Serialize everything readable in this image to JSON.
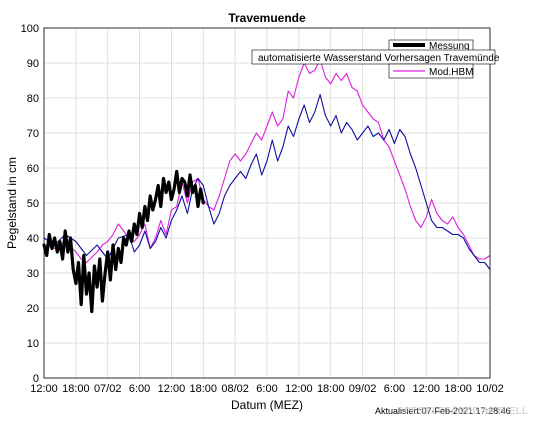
{
  "chart_data": {
    "type": "line",
    "title": "Travemuende",
    "xlabel": "Datum (MEZ)",
    "ylabel": "Pegelstand in cm",
    "xlim": [
      0,
      84
    ],
    "ylim": [
      0,
      100
    ],
    "yticks": [
      0,
      10,
      20,
      30,
      40,
      50,
      60,
      70,
      80,
      90,
      100
    ],
    "xticks": [
      {
        "x": 0,
        "label": "12:00"
      },
      {
        "x": 6,
        "label": "18:00"
      },
      {
        "x": 12,
        "label": "07/02"
      },
      {
        "x": 18,
        "label": "6:00"
      },
      {
        "x": 24,
        "label": "12:00"
      },
      {
        "x": 30,
        "label": "18:00"
      },
      {
        "x": 36,
        "label": "08/02"
      },
      {
        "x": 42,
        "label": "6:00"
      },
      {
        "x": 48,
        "label": "12:00"
      },
      {
        "x": 54,
        "label": "18:00"
      },
      {
        "x": 60,
        "label": "09/02"
      },
      {
        "x": 66,
        "label": "6:00"
      },
      {
        "x": 72,
        "label": "12:00"
      },
      {
        "x": 78,
        "label": "18:00"
      },
      {
        "x": 84,
        "label": "10/02"
      }
    ],
    "grid": true,
    "legend_position": "top-right",
    "series": [
      {
        "name": "Messung",
        "color": "#000000",
        "x": [
          0,
          0.5,
          1,
          1.5,
          2,
          2.5,
          3,
          3.5,
          4,
          4.5,
          5,
          5.5,
          6,
          6.5,
          7,
          7.5,
          8,
          8.5,
          9,
          9.5,
          10,
          10.5,
          11,
          11.5,
          12,
          12.5,
          13,
          13.5,
          14,
          14.5,
          15,
          15.5,
          16,
          16.5,
          17,
          17.5,
          18,
          18.5,
          19,
          19.5,
          20,
          20.5,
          21,
          21.5,
          22,
          22.5,
          23,
          23.5,
          24,
          24.5,
          25,
          25.5,
          26,
          26.5,
          27,
          27.5,
          28,
          28.5,
          29,
          29.5,
          30
        ],
        "y": [
          38,
          35,
          41,
          37,
          40,
          36,
          39,
          34,
          42,
          36,
          40,
          31,
          27,
          33,
          21,
          35,
          24,
          30,
          19,
          32,
          26,
          34,
          22,
          30,
          36,
          28,
          38,
          31,
          37,
          33,
          40,
          38,
          42,
          39,
          44,
          41,
          47,
          43,
          49,
          45,
          52,
          48,
          51,
          55,
          49,
          57,
          53,
          56,
          51,
          54,
          59,
          53,
          57,
          56,
          52,
          58,
          53,
          55,
          49,
          54,
          50
        ]
      },
      {
        "name": "automatisierte Wasserstand Vorhersagen Travemünde",
        "color": "#1010a0",
        "x": [
          0,
          2,
          4,
          6,
          7,
          8,
          10,
          11,
          12,
          13,
          14,
          16,
          17,
          18,
          19,
          20,
          21,
          22,
          23,
          24,
          25,
          26,
          27,
          28,
          29,
          30,
          31,
          32,
          33,
          34,
          35,
          36,
          37,
          38,
          39,
          40,
          41,
          42,
          43,
          44,
          45,
          46,
          47,
          48,
          49,
          50,
          51,
          52,
          53,
          54,
          55,
          56,
          57,
          58,
          59,
          60,
          61,
          62,
          63,
          64,
          65,
          66,
          67,
          68,
          69,
          70,
          71,
          72,
          73,
          74,
          75,
          76,
          77,
          78,
          79,
          80,
          81,
          82,
          83,
          84
        ],
        "y": [
          40,
          38,
          41,
          39,
          37,
          35,
          38,
          36,
          34,
          37,
          40,
          41,
          36,
          38,
          42,
          37,
          39,
          43,
          40,
          45,
          48,
          52,
          47,
          54,
          57,
          55,
          49,
          44,
          47,
          52,
          55,
          57,
          59,
          57,
          61,
          64,
          58,
          62,
          68,
          62,
          66,
          72,
          69,
          74,
          78,
          73,
          76,
          81,
          75,
          72,
          75,
          70,
          73,
          71,
          68,
          70,
          72,
          69,
          70,
          68,
          71,
          67,
          71,
          69,
          64,
          60,
          55,
          50,
          45,
          43,
          43,
          42,
          41,
          41,
          40,
          37,
          35,
          33,
          33,
          31
        ]
      },
      {
        "name": "Mod.HBM",
        "color": "#e020e0",
        "x": [
          0,
          2,
          4,
          6,
          7,
          8,
          10,
          11,
          12,
          13,
          14,
          16,
          17,
          18,
          19,
          20,
          21,
          22,
          23,
          24,
          25,
          26,
          27,
          28,
          29,
          30,
          31,
          32,
          33,
          34,
          35,
          36,
          37,
          38,
          39,
          40,
          41,
          42,
          43,
          44,
          45,
          46,
          47,
          48,
          49,
          50,
          51,
          52,
          53,
          54,
          55,
          56,
          57,
          58,
          59,
          60,
          61,
          62,
          63,
          64,
          65,
          66,
          67,
          68,
          69,
          70,
          71,
          72,
          73,
          74,
          75,
          76,
          77,
          78,
          79,
          80,
          81,
          82,
          83,
          84
        ],
        "y": [
          38,
          37,
          39,
          36,
          34,
          33,
          36,
          38,
          39,
          41,
          44,
          40,
          39,
          41,
          44,
          37,
          40,
          45,
          41,
          48,
          49,
          56,
          50,
          56,
          57,
          51,
          49,
          48,
          52,
          57,
          62,
          64,
          62,
          64,
          67,
          70,
          68,
          72,
          76,
          72,
          74,
          82,
          80,
          86,
          90,
          87,
          88,
          91,
          86,
          84,
          87,
          85,
          87,
          83,
          82,
          78,
          76,
          74,
          73,
          68,
          66,
          62,
          58,
          54,
          49,
          45,
          43,
          46,
          51,
          47,
          45,
          44,
          46,
          43,
          41,
          38,
          35,
          34,
          34,
          35
        ]
      }
    ],
    "annotations": [
      "Aktualisiert:07-Feb-2021 17:28:46"
    ],
    "watermark": "PEGELSTÄNDE AKTUELL"
  }
}
